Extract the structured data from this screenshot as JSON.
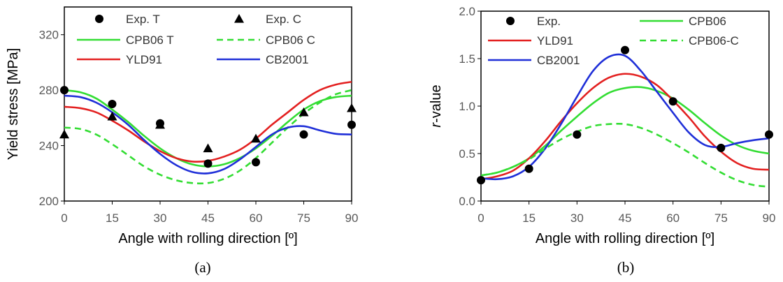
{
  "chart_data": [
    {
      "type": "line",
      "panel_label": "(a)",
      "xlabel": "Angle with rolling direction [º]",
      "ylabel": "Yield stress [MPa]",
      "ylabel_italic_part": "",
      "xlim": [
        0,
        90
      ],
      "ylim": [
        200,
        340
      ],
      "xticks": [
        0,
        15,
        30,
        45,
        60,
        75,
        90
      ],
      "yticks": [
        200,
        240,
        280,
        320
      ],
      "grid": false,
      "legend_placement": "top",
      "series": [
        {
          "name": "Exp. T",
          "kind": "marker",
          "marker": "circle",
          "color": "#000000",
          "x": [
            0,
            15,
            30,
            45,
            60,
            75,
            90
          ],
          "y": [
            280,
            270,
            256,
            227,
            228,
            248,
            255
          ]
        },
        {
          "name": "Exp. C",
          "kind": "marker",
          "marker": "triangle",
          "color": "#000000",
          "x": [
            0,
            15,
            30,
            45,
            60,
            75,
            90
          ],
          "y": [
            248,
            261,
            255,
            238,
            245,
            264,
            267
          ]
        },
        {
          "name": "CPB06 T",
          "kind": "line",
          "dash": "solid",
          "color": "#33dd33",
          "x": [
            0,
            5,
            10,
            15,
            20,
            25,
            30,
            35,
            40,
            45,
            50,
            55,
            60,
            65,
            70,
            75,
            80,
            85,
            90
          ],
          "y": [
            280,
            278.5,
            274,
            266,
            257,
            247,
            238,
            231,
            226.5,
            225,
            226.5,
            231,
            238,
            247,
            257,
            266,
            272,
            275,
            276
          ]
        },
        {
          "name": "CPB06 C",
          "kind": "line",
          "dash": "dashed",
          "color": "#33dd33",
          "x": [
            0,
            5,
            10,
            15,
            20,
            25,
            30,
            35,
            40,
            45,
            50,
            55,
            60,
            65,
            70,
            75,
            80,
            85,
            90
          ],
          "y": [
            253,
            252,
            248,
            241,
            233,
            225,
            219,
            215,
            213,
            213,
            216,
            222,
            231,
            242,
            253,
            263,
            271,
            277,
            280
          ]
        },
        {
          "name": "YLD91",
          "kind": "line",
          "dash": "solid",
          "color": "#e32020",
          "x": [
            0,
            5,
            10,
            15,
            20,
            25,
            30,
            35,
            40,
            45,
            50,
            55,
            60,
            65,
            70,
            75,
            80,
            85,
            90
          ],
          "y": [
            268,
            267,
            264,
            258,
            251,
            243,
            236,
            231,
            228.5,
            229,
            232,
            237,
            245,
            255,
            264,
            273,
            280,
            284,
            286
          ]
        },
        {
          "name": "CB2001",
          "kind": "line",
          "dash": "solid",
          "color": "#1f2fd8",
          "x": [
            0,
            5,
            10,
            15,
            20,
            25,
            30,
            35,
            40,
            45,
            50,
            55,
            60,
            65,
            70,
            75,
            80,
            85,
            90
          ],
          "y": [
            276,
            275,
            271,
            264,
            255,
            244,
            234,
            226,
            221,
            220,
            223,
            230,
            239,
            248,
            253,
            254,
            251,
            248.5,
            248
          ]
        }
      ]
    },
    {
      "type": "line",
      "panel_label": "(b)",
      "xlabel": "Angle with rolling direction [º]",
      "ylabel": "-value",
      "ylabel_italic_part": "r",
      "xlim": [
        0,
        90
      ],
      "ylim": [
        0,
        2
      ],
      "xticks": [
        0,
        15,
        30,
        45,
        60,
        75,
        90
      ],
      "yticks": [
        0.0,
        0.5,
        1.0,
        1.5,
        2.0
      ],
      "grid": false,
      "legend_placement": "top",
      "series": [
        {
          "name": "Exp.",
          "kind": "marker",
          "marker": "circle",
          "color": "#000000",
          "x": [
            0,
            15,
            30,
            45,
            60,
            75,
            90
          ],
          "y": [
            0.22,
            0.34,
            0.7,
            1.59,
            1.05,
            0.56,
            0.7
          ]
        },
        {
          "name": "CPB06",
          "kind": "line",
          "dash": "solid",
          "color": "#33dd33",
          "x": [
            0,
            5,
            10,
            15,
            20,
            25,
            30,
            35,
            40,
            45,
            50,
            55,
            60,
            65,
            70,
            75,
            80,
            85,
            90
          ],
          "y": [
            0.27,
            0.3,
            0.36,
            0.45,
            0.58,
            0.74,
            0.89,
            1.03,
            1.14,
            1.19,
            1.2,
            1.16,
            1.08,
            0.96,
            0.82,
            0.69,
            0.59,
            0.53,
            0.5
          ]
        },
        {
          "name": "YLD91",
          "kind": "line",
          "dash": "solid",
          "color": "#e32020",
          "x": [
            0,
            5,
            10,
            15,
            20,
            25,
            30,
            35,
            40,
            45,
            50,
            55,
            60,
            65,
            70,
            75,
            80,
            85,
            90
          ],
          "y": [
            0.23,
            0.26,
            0.32,
            0.45,
            0.63,
            0.84,
            1.03,
            1.19,
            1.3,
            1.34,
            1.31,
            1.22,
            1.06,
            0.88,
            0.68,
            0.52,
            0.4,
            0.34,
            0.33
          ]
        },
        {
          "name": "CB2001",
          "kind": "line",
          "dash": "solid",
          "color": "#1f2fd8",
          "x": [
            0,
            5,
            10,
            15,
            20,
            25,
            30,
            35,
            40,
            45,
            50,
            55,
            60,
            65,
            70,
            75,
            80,
            85,
            90
          ],
          "y": [
            0.24,
            0.23,
            0.26,
            0.36,
            0.55,
            0.81,
            1.1,
            1.37,
            1.52,
            1.53,
            1.37,
            1.15,
            0.93,
            0.72,
            0.59,
            0.57,
            0.61,
            0.64,
            0.66
          ]
        },
        {
          "name": "CPB06-C",
          "kind": "line",
          "dash": "dashed",
          "color": "#33dd33",
          "x": [
            0,
            5,
            10,
            15,
            20,
            25,
            30,
            35,
            40,
            45,
            50,
            55,
            60,
            65,
            70,
            75,
            80,
            85,
            90
          ],
          "y": [
            0.27,
            0.3,
            0.36,
            0.44,
            0.55,
            0.65,
            0.73,
            0.79,
            0.81,
            0.81,
            0.77,
            0.7,
            0.61,
            0.51,
            0.4,
            0.3,
            0.22,
            0.17,
            0.15
          ]
        }
      ]
    }
  ]
}
